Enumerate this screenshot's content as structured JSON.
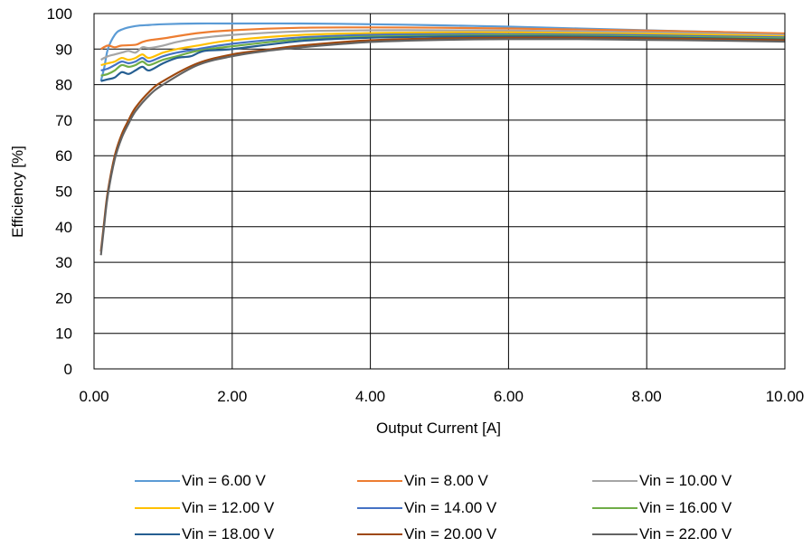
{
  "chart_data": {
    "type": "line",
    "xlabel": "Output Current [A]",
    "ylabel": "Efficiency [%]",
    "xlim": [
      0,
      10
    ],
    "ylim": [
      0,
      100
    ],
    "x_ticks": [
      "0.00",
      "2.00",
      "4.00",
      "6.00",
      "8.00",
      "10.00"
    ],
    "y_ticks": [
      "0",
      "10",
      "20",
      "30",
      "40",
      "50",
      "60",
      "70",
      "80",
      "90",
      "100"
    ],
    "grid": true,
    "legend_position": "bottom",
    "series": [
      {
        "name": "Vin = 6.00 V",
        "color": "#5b9bd5",
        "x": [
          0.1,
          0.15,
          0.2,
          0.3,
          0.4,
          0.6,
          0.8,
          1.0,
          1.5,
          2.0,
          3.0,
          4.0,
          5.0,
          6.0,
          7.0,
          8.0,
          9.0,
          10.0
        ],
        "y": [
          81,
          85,
          90,
          94,
          95.5,
          96.5,
          96.8,
          97,
          97.2,
          97.2,
          97.2,
          97,
          96.7,
          96.3,
          95.8,
          95.3,
          94.8,
          94.3
        ]
      },
      {
        "name": "Vin = 8.00 V",
        "color": "#ed7d31",
        "x": [
          0.1,
          0.2,
          0.3,
          0.4,
          0.6,
          0.7,
          0.8,
          1.0,
          1.5,
          2.0,
          3.0,
          4.0,
          5.0,
          6.0,
          7.0,
          8.0,
          9.0,
          10.0
        ],
        "y": [
          90,
          91,
          90.5,
          91,
          91.2,
          92,
          92.5,
          93,
          94.5,
          95.3,
          96,
          96.1,
          96,
          95.8,
          95.5,
          95.2,
          94.8,
          94.4
        ]
      },
      {
        "name": "Vin = 10.00 V",
        "color": "#a5a5a5",
        "x": [
          0.1,
          0.2,
          0.3,
          0.4,
          0.5,
          0.6,
          0.7,
          0.8,
          1.0,
          1.2,
          1.5,
          2.0,
          3.0,
          4.0,
          5.0,
          6.0,
          7.0,
          8.0,
          9.0,
          10.0
        ],
        "y": [
          87,
          88,
          88.5,
          89,
          89.5,
          89,
          90.5,
          90.3,
          91,
          92,
          93,
          94,
          95,
          95.3,
          95.3,
          95.2,
          95,
          94.7,
          94.4,
          94
        ]
      },
      {
        "name": "Vin = 12.00 V",
        "color": "#ffc000",
        "x": [
          0.1,
          0.2,
          0.3,
          0.4,
          0.5,
          0.6,
          0.7,
          0.8,
          1.0,
          1.2,
          1.5,
          2.0,
          3.0,
          4.0,
          5.0,
          6.0,
          7.0,
          8.0,
          9.0,
          10.0
        ],
        "y": [
          85.5,
          86,
          86.5,
          87.5,
          87,
          87.5,
          88.5,
          87.5,
          89,
          90,
          91,
          92.5,
          94,
          94.5,
          94.7,
          94.7,
          94.5,
          94.3,
          94,
          93.6
        ]
      },
      {
        "name": "Vin = 14.00 V",
        "color": "#4472c4",
        "x": [
          0.1,
          0.2,
          0.3,
          0.4,
          0.5,
          0.6,
          0.7,
          0.8,
          1.0,
          1.2,
          1.5,
          2.0,
          3.0,
          4.0,
          5.0,
          6.0,
          7.0,
          8.0,
          9.0,
          10.0
        ],
        "y": [
          84,
          84.5,
          85.5,
          86.5,
          86,
          86.5,
          87.5,
          86.5,
          88,
          89,
          90,
          91.5,
          93.3,
          94,
          94.2,
          94.2,
          94.1,
          93.9,
          93.6,
          93.3
        ]
      },
      {
        "name": "Vin = 16.00 V",
        "color": "#70ad47",
        "x": [
          0.1,
          0.2,
          0.3,
          0.4,
          0.5,
          0.6,
          0.7,
          0.8,
          1.0,
          1.2,
          1.5,
          2.0,
          3.0,
          4.0,
          5.0,
          6.0,
          7.0,
          8.0,
          9.0,
          10.0
        ],
        "y": [
          82.5,
          83,
          84,
          85.5,
          85,
          85.5,
          86.5,
          85.5,
          87,
          88,
          89.5,
          90.8,
          92.8,
          93.5,
          93.8,
          93.9,
          93.8,
          93.6,
          93.3,
          93
        ]
      },
      {
        "name": "Vin = 18.00 V",
        "color": "#255e91",
        "x": [
          0.1,
          0.2,
          0.3,
          0.4,
          0.5,
          0.6,
          0.7,
          0.8,
          1.0,
          1.2,
          1.4,
          1.6,
          2.0,
          3.0,
          4.0,
          5.0,
          6.0,
          7.0,
          8.0,
          9.0,
          10.0
        ],
        "y": [
          81,
          81.5,
          82,
          83.5,
          83,
          84,
          85,
          84,
          86,
          87.5,
          88,
          89.5,
          90,
          92.3,
          93.2,
          93.5,
          93.6,
          93.5,
          93.3,
          93,
          92.7
        ]
      },
      {
        "name": "Vin = 20.00 V",
        "color": "#9e480e",
        "x": [
          0.1,
          0.15,
          0.2,
          0.3,
          0.4,
          0.5,
          0.6,
          0.8,
          1.0,
          1.5,
          2.0,
          2.5,
          3.0,
          4.0,
          5.0,
          6.0,
          7.0,
          8.0,
          9.0,
          10.0
        ],
        "y": [
          33,
          42,
          50,
          60,
          66,
          70,
          73.5,
          78,
          81,
          86,
          88.5,
          89.8,
          91,
          92.5,
          93,
          93.2,
          93.2,
          93,
          92.8,
          92.5
        ]
      },
      {
        "name": "Vin = 22.00 V",
        "color": "#636363",
        "x": [
          0.1,
          0.15,
          0.2,
          0.3,
          0.4,
          0.5,
          0.6,
          0.8,
          1.0,
          1.5,
          2.0,
          2.5,
          3.0,
          4.0,
          5.0,
          6.0,
          7.0,
          8.0,
          9.0,
          10.0
        ],
        "y": [
          32,
          41,
          49,
          59,
          65,
          69,
          72.5,
          77,
          80,
          85.5,
          88,
          89.5,
          90.5,
          92,
          92.6,
          92.8,
          92.8,
          92.6,
          92.4,
          92.1
        ]
      }
    ]
  }
}
